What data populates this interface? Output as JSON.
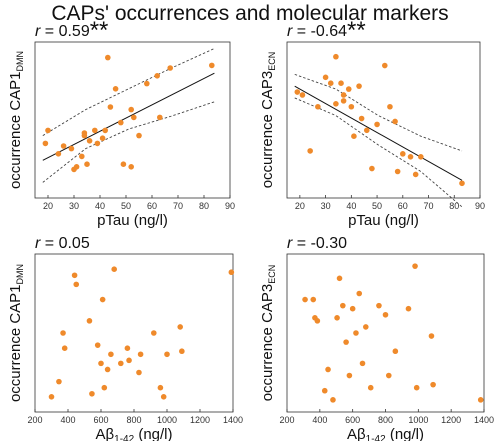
{
  "figure": {
    "title": "CAPs' occurrences and molecular markers"
  },
  "colors": {
    "points": "#ef8a2b",
    "fit": "#111111",
    "ci": "#444444",
    "axis": "#333333"
  },
  "chart_data": [
    {
      "type": "scatter",
      "stat": {
        "prefix": "r",
        "value": "= 0.59",
        "stars": "**"
      },
      "xlabel": "pTau (ng/l)",
      "ylabel_main": "occurrence CAP1",
      "ylabel_sub": "DMN",
      "xlim": [
        15,
        90
      ],
      "ylim": [
        0,
        0.6
      ],
      "xticks": [
        "20",
        "30",
        "40",
        "50",
        "60",
        "70",
        "80",
        "90"
      ],
      "xtick_values": [
        20,
        30,
        40,
        50,
        60,
        70,
        80,
        90
      ],
      "fit": {
        "x": [
          18,
          84
        ],
        "y": [
          0.145,
          0.48
        ],
        "ci_upper": [
          0.24,
          0.34,
          0.42,
          0.5,
          0.575
        ],
        "ci_lower": [
          0.06,
          0.19,
          0.265,
          0.315,
          0.37
        ],
        "ci_x": [
          18,
          34.5,
          51,
          67.5,
          84
        ]
      },
      "points": [
        {
          "x": 19,
          "y": 0.21
        },
        {
          "x": 20,
          "y": 0.26
        },
        {
          "x": 24,
          "y": 0.17
        },
        {
          "x": 26,
          "y": 0.2
        },
        {
          "x": 29,
          "y": 0.19
        },
        {
          "x": 30,
          "y": 0.11
        },
        {
          "x": 31,
          "y": 0.12
        },
        {
          "x": 33,
          "y": 0.16
        },
        {
          "x": 34,
          "y": 0.25
        },
        {
          "x": 34,
          "y": 0.24
        },
        {
          "x": 35,
          "y": 0.13
        },
        {
          "x": 36,
          "y": 0.22
        },
        {
          "x": 38,
          "y": 0.26
        },
        {
          "x": 39,
          "y": 0.21
        },
        {
          "x": 41,
          "y": 0.23
        },
        {
          "x": 42,
          "y": 0.26
        },
        {
          "x": 43,
          "y": 0.54
        },
        {
          "x": 44,
          "y": 0.35
        },
        {
          "x": 46,
          "y": 0.42
        },
        {
          "x": 48,
          "y": 0.29
        },
        {
          "x": 49,
          "y": 0.13
        },
        {
          "x": 52,
          "y": 0.34
        },
        {
          "x": 52,
          "y": 0.12
        },
        {
          "x": 53,
          "y": 0.31
        },
        {
          "x": 55,
          "y": 0.24
        },
        {
          "x": 58,
          "y": 0.44
        },
        {
          "x": 62,
          "y": 0.47
        },
        {
          "x": 63,
          "y": 0.31
        },
        {
          "x": 67,
          "y": 0.5
        },
        {
          "x": 83,
          "y": 0.51
        }
      ]
    },
    {
      "type": "scatter",
      "stat": {
        "prefix": "r",
        "value": "= -0.64",
        "stars": "**"
      },
      "xlabel": "pTau (ng/l)",
      "ylabel_main": "occurrence CAP3",
      "ylabel_sub": "ECN",
      "xlim": [
        15,
        90
      ],
      "ylim": [
        0.25,
        0.78
      ],
      "xticks": [
        "20",
        "30",
        "40",
        "50",
        "60",
        "70",
        "80",
        "90"
      ],
      "xtick_values": [
        20,
        30,
        40,
        50,
        60,
        70,
        80,
        90
      ],
      "fit": {
        "x": [
          18,
          83
        ],
        "y": [
          0.63,
          0.31
        ],
        "ci_upper": [
          0.67,
          0.62,
          0.53,
          0.46,
          0.41
        ],
        "ci_lower": [
          0.59,
          0.53,
          0.43,
          0.34,
          0.22
        ],
        "ci_x": [
          18,
          34,
          50.5,
          67,
          83
        ]
      },
      "points": [
        {
          "x": 19,
          "y": 0.61
        },
        {
          "x": 21,
          "y": 0.6
        },
        {
          "x": 24,
          "y": 0.41
        },
        {
          "x": 27,
          "y": 0.56
        },
        {
          "x": 30,
          "y": 0.66
        },
        {
          "x": 32,
          "y": 0.64
        },
        {
          "x": 34,
          "y": 0.73
        },
        {
          "x": 34,
          "y": 0.57
        },
        {
          "x": 36,
          "y": 0.64
        },
        {
          "x": 37,
          "y": 0.6
        },
        {
          "x": 37,
          "y": 0.58
        },
        {
          "x": 39,
          "y": 0.62
        },
        {
          "x": 40,
          "y": 0.56
        },
        {
          "x": 41,
          "y": 0.46
        },
        {
          "x": 43,
          "y": 0.63
        },
        {
          "x": 44,
          "y": 0.52
        },
        {
          "x": 46,
          "y": 0.48
        },
        {
          "x": 48,
          "y": 0.35
        },
        {
          "x": 50,
          "y": 0.5
        },
        {
          "x": 53,
          "y": 0.7
        },
        {
          "x": 55,
          "y": 0.56
        },
        {
          "x": 57,
          "y": 0.51
        },
        {
          "x": 58,
          "y": 0.34
        },
        {
          "x": 60,
          "y": 0.4
        },
        {
          "x": 63,
          "y": 0.39
        },
        {
          "x": 65,
          "y": 0.33
        },
        {
          "x": 67,
          "y": 0.39
        },
        {
          "x": 83,
          "y": 0.3
        }
      ]
    },
    {
      "type": "scatter",
      "stat": {
        "prefix": "r",
        "value": "= 0.05",
        "stars": ""
      },
      "xlabel": "Aβ1-42 (ng/l)",
      "xlabel_main": "Aβ",
      "xlabel_sub": "1-42",
      "xlabel_unit": " (ng/l)",
      "ylabel_main": "occurrence CAP1",
      "ylabel_sub": "DMN",
      "xlim": [
        200,
        1400
      ],
      "ylim": [
        0.05,
        0.57
      ],
      "xticks": [
        "200",
        "400",
        "600",
        "800",
        "1000",
        "1200",
        "1400"
      ],
      "xtick_values": [
        200,
        400,
        600,
        800,
        1000,
        1200,
        1400
      ],
      "fit": null,
      "points": [
        {
          "x": 300,
          "y": 0.1
        },
        {
          "x": 345,
          "y": 0.15
        },
        {
          "x": 370,
          "y": 0.31
        },
        {
          "x": 380,
          "y": 0.26
        },
        {
          "x": 440,
          "y": 0.5
        },
        {
          "x": 450,
          "y": 0.47
        },
        {
          "x": 530,
          "y": 0.35
        },
        {
          "x": 545,
          "y": 0.11
        },
        {
          "x": 580,
          "y": 0.27
        },
        {
          "x": 600,
          "y": 0.21
        },
        {
          "x": 610,
          "y": 0.42
        },
        {
          "x": 620,
          "y": 0.13
        },
        {
          "x": 640,
          "y": 0.19
        },
        {
          "x": 660,
          "y": 0.24
        },
        {
          "x": 680,
          "y": 0.52
        },
        {
          "x": 720,
          "y": 0.21
        },
        {
          "x": 760,
          "y": 0.26
        },
        {
          "x": 770,
          "y": 0.22
        },
        {
          "x": 830,
          "y": 0.18
        },
        {
          "x": 840,
          "y": 0.24
        },
        {
          "x": 920,
          "y": 0.31
        },
        {
          "x": 960,
          "y": 0.13
        },
        {
          "x": 980,
          "y": 0.1
        },
        {
          "x": 1000,
          "y": 0.24
        },
        {
          "x": 1080,
          "y": 0.33
        },
        {
          "x": 1090,
          "y": 0.25
        },
        {
          "x": 1390,
          "y": 0.51
        }
      ]
    },
    {
      "type": "scatter",
      "stat": {
        "prefix": "r",
        "value": "= -0.30",
        "stars": ""
      },
      "xlabel": "Aβ1-42 (ng/l)",
      "xlabel_main": "Aβ",
      "xlabel_sub": "1-42",
      "xlabel_unit": " (ng/l)",
      "ylabel_main": "occurrence CAP3",
      "ylabel_sub": "ECN",
      "xlim": [
        200,
        1400
      ],
      "ylim": [
        0.26,
        0.78
      ],
      "xticks": [
        "200",
        "400",
        "600",
        "800",
        "1000",
        "1200",
        "1400"
      ],
      "xtick_values": [
        200,
        400,
        600,
        800,
        1000,
        1200,
        1400
      ],
      "fit": null,
      "points": [
        {
          "x": 310,
          "y": 0.63
        },
        {
          "x": 360,
          "y": 0.63
        },
        {
          "x": 370,
          "y": 0.57
        },
        {
          "x": 385,
          "y": 0.56
        },
        {
          "x": 430,
          "y": 0.33
        },
        {
          "x": 450,
          "y": 0.4
        },
        {
          "x": 480,
          "y": 0.3
        },
        {
          "x": 505,
          "y": 0.57
        },
        {
          "x": 520,
          "y": 0.7
        },
        {
          "x": 540,
          "y": 0.61
        },
        {
          "x": 560,
          "y": 0.49
        },
        {
          "x": 580,
          "y": 0.38
        },
        {
          "x": 600,
          "y": 0.6
        },
        {
          "x": 620,
          "y": 0.52
        },
        {
          "x": 640,
          "y": 0.65
        },
        {
          "x": 660,
          "y": 0.42
        },
        {
          "x": 680,
          "y": 0.54
        },
        {
          "x": 710,
          "y": 0.34
        },
        {
          "x": 760,
          "y": 0.61
        },
        {
          "x": 800,
          "y": 0.58
        },
        {
          "x": 820,
          "y": 0.38
        },
        {
          "x": 860,
          "y": 0.46
        },
        {
          "x": 940,
          "y": 0.6
        },
        {
          "x": 980,
          "y": 0.74
        },
        {
          "x": 990,
          "y": 0.34
        },
        {
          "x": 1080,
          "y": 0.51
        },
        {
          "x": 1090,
          "y": 0.35
        },
        {
          "x": 1380,
          "y": 0.3
        }
      ]
    }
  ]
}
